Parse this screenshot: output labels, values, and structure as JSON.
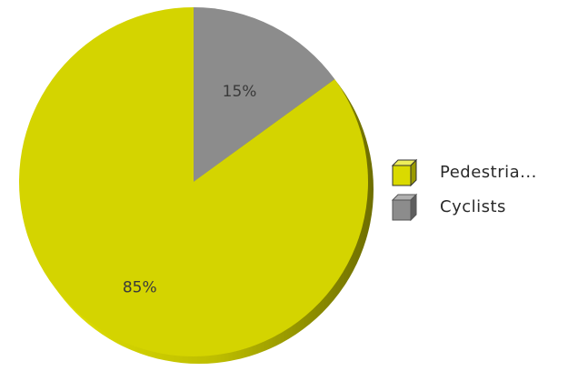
{
  "chart_data": {
    "type": "pie",
    "categories": [
      "Pedestria...",
      "Cyclists"
    ],
    "values": [
      85,
      15
    ],
    "labels": [
      "85%",
      "15%"
    ],
    "colors": [
      "#d4d400",
      "#8c8c8c"
    ],
    "legend_position": "right",
    "title": ""
  }
}
